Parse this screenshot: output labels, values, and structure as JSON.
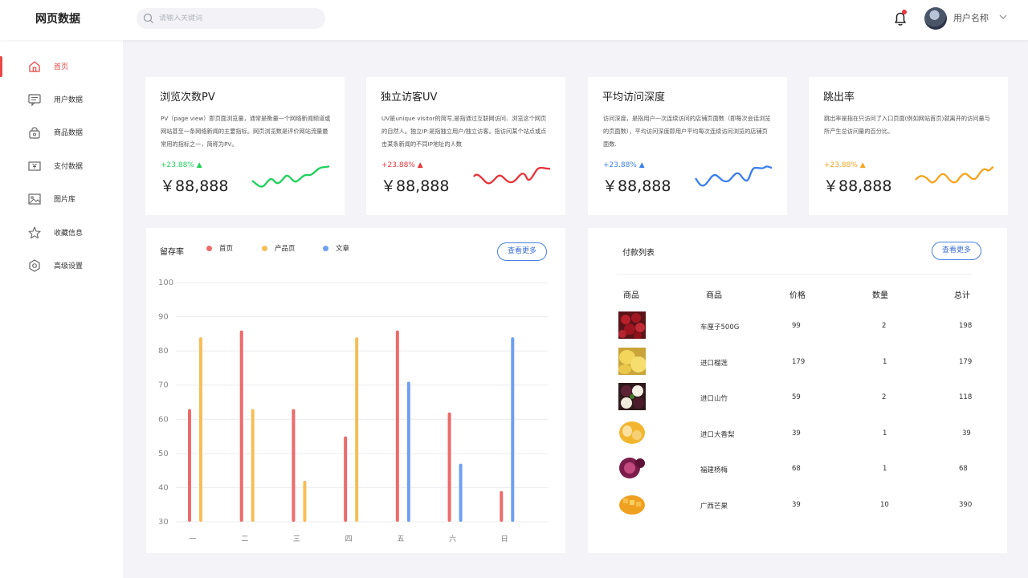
{
  "header": {
    "logo": "网页数据",
    "search_placeholder": "请输入关键词",
    "username": "用户名称"
  },
  "sidebar": {
    "items": [
      {
        "label": "首页",
        "icon": "home-icon",
        "active": true
      },
      {
        "label": "用户数据",
        "icon": "message-icon",
        "active": false
      },
      {
        "label": "商品数据",
        "icon": "bag-icon",
        "active": false
      },
      {
        "label": "支付数据",
        "icon": "money-icon",
        "active": false
      },
      {
        "label": "图片库",
        "icon": "image-icon",
        "active": false
      },
      {
        "label": "收藏信息",
        "icon": "star-icon",
        "active": false
      },
      {
        "label": "高级设置",
        "icon": "gear-icon",
        "active": false
      }
    ]
  },
  "cards": [
    {
      "title": "浏览次数PV",
      "desc": "PV（page view）即页面浏览量，通常是衡量一个网络新闻频道或网站甚至一条网络新闻的主要指标。网页浏览数是评价网站流量最常用的指标之一，简称为PV。",
      "change": "+23.88%",
      "value": "￥88,888",
      "color": "#1fd15a"
    },
    {
      "title": "独立访客UV",
      "desc": "UV是unique visitor的简写,是指通过互联网访问、浏览这个网页的自然人。独立IP:是指独立用户/独立访客。指访问某个站点或点击某条新闻的不同IP地址的人数",
      "change": "+23.88%",
      "value": "￥88,888",
      "color": "#e8343a"
    },
    {
      "title": "平均访问深度",
      "desc": "访问深度，是指用户一次连续访问的店铺页面数（即每次会话浏览的页面数），平均访问深度即用户平均每次连续访问浏览的店铺页面数.",
      "change": "+23.88%",
      "value": "￥88,888",
      "color": "#3a7ef0"
    },
    {
      "title": "跳出率",
      "desc": "跳出率是指在只访问了入口页面(例如网站首页)就离开的访问量与所产生总访问量的百分比。",
      "change": "+23.88%",
      "value": "￥88,888",
      "color": "#f5a41d"
    }
  ],
  "retention": {
    "title": "留存率",
    "more_label": "查看更多"
  },
  "chart_data": {
    "type": "bar",
    "categories": [
      "一",
      "二",
      "三",
      "四",
      "五",
      "六",
      "日"
    ],
    "series": [
      {
        "name": "首页",
        "color": "#ec6b6b",
        "values": [
          63,
          86,
          63,
          55,
          86,
          62,
          39
        ]
      },
      {
        "name": "产品页",
        "color": "#f7be57",
        "values": [
          84,
          63,
          42,
          84,
          null,
          null,
          null
        ]
      },
      {
        "name": "文章",
        "color": "#6fa0f0",
        "values": [
          null,
          null,
          null,
          null,
          71,
          47,
          84
        ]
      }
    ],
    "ylim": [
      30,
      100
    ],
    "yticks": [
      30,
      40,
      50,
      60,
      70,
      80,
      90,
      100
    ],
    "grid": true,
    "legend": "top"
  },
  "payments": {
    "title": "付款列表",
    "more_label": "查看更多",
    "columns": [
      "商品",
      "商品",
      "价格",
      "数量",
      "总计"
    ],
    "rows": [
      {
        "name": "车厘子500G",
        "price": "99",
        "qty": "2",
        "total": "198",
        "thumb": "cherry-image"
      },
      {
        "name": "进口榴莲",
        "price": "179",
        "qty": "1",
        "total": "179",
        "thumb": "durian-image"
      },
      {
        "name": "进口山竹",
        "price": "59",
        "qty": "2",
        "total": "118",
        "thumb": "mangosteen-image"
      },
      {
        "name": "进口大香梨",
        "price": "39",
        "qty": "1",
        "total": "39",
        "thumb": "pear-image"
      },
      {
        "name": "福建杨梅",
        "price": "68",
        "qty": "1",
        "total": "68",
        "thumb": "bayberry-image"
      },
      {
        "name": "广西芒果",
        "price": "39",
        "qty": "10",
        "total": "390",
        "thumb": "mango-image"
      }
    ]
  }
}
